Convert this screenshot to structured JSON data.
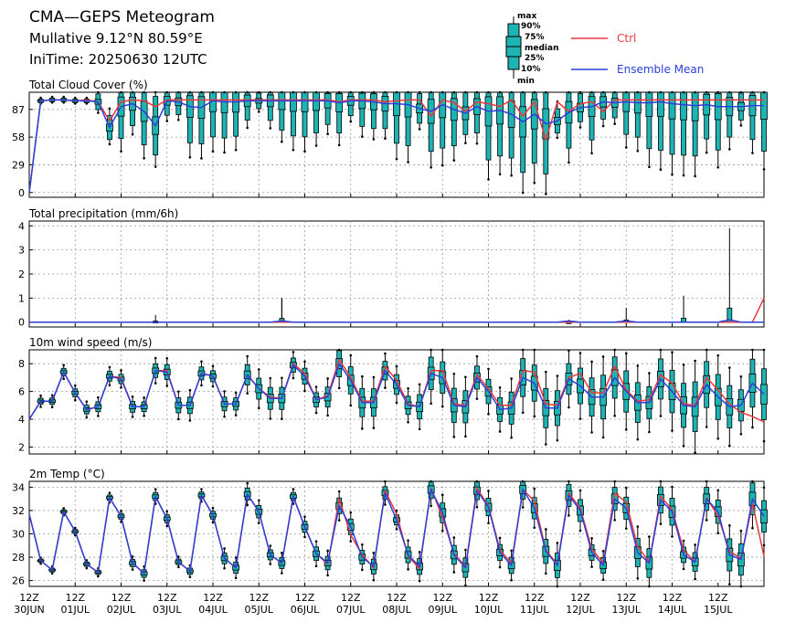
{
  "header": {
    "title": "CMA—GEPS Meteogram",
    "location": "Mullative 9.12°N 80.59°E",
    "init_time": "IniTime: 20250630 12UTC"
  },
  "box_key": {
    "labels": [
      "max",
      "90%",
      "75%",
      "median",
      "25%",
      "10%",
      "min"
    ]
  },
  "legend": {
    "ctrl_label": "Ctrl",
    "mean_label": "Ensemble Mean",
    "ctrl_color": "#e8383b",
    "mean_color": "#2c3fdc",
    "box_color": "#1fb4b4"
  },
  "chart_data": [
    {
      "type": "line",
      "panel": "cloud",
      "title": "Total Cloud Cover (%)",
      "ylim": [
        -5,
        105
      ],
      "yticks": [
        0,
        29,
        58,
        87
      ],
      "grid": true,
      "series": [
        {
          "name": "Ctrl",
          "values": [
            0,
            96,
            97,
            97,
            96,
            97,
            95,
            75,
            95,
            97,
            96,
            90,
            97,
            97,
            97,
            97,
            97,
            97,
            97,
            97,
            97,
            97,
            97,
            97,
            97,
            97,
            97,
            95,
            97,
            97,
            97,
            95,
            96,
            97,
            97,
            80,
            97,
            94,
            85,
            95,
            93,
            90,
            97,
            80,
            95,
            55,
            95,
            85,
            93,
            95,
            85,
            97,
            97,
            97,
            97,
            97,
            97,
            97,
            97,
            97,
            97,
            97,
            97,
            97,
            97
          ]
        },
        {
          "name": "Ensemble Mean",
          "values": [
            0,
            96,
            97,
            97,
            96,
            96,
            95,
            68,
            90,
            93,
            85,
            70,
            96,
            95,
            90,
            89,
            96,
            95,
            95,
            96,
            96,
            96,
            96,
            96,
            96,
            96,
            96,
            94,
            96,
            96,
            95,
            93,
            93,
            92,
            88,
            85,
            92,
            87,
            83,
            90,
            85,
            86,
            82,
            74,
            82,
            72,
            75,
            84,
            89,
            90,
            95,
            94,
            95,
            94,
            94,
            95,
            93,
            92,
            91,
            92,
            90,
            90,
            90,
            91,
            91
          ]
        }
      ]
    },
    {
      "type": "line",
      "panel": "precip",
      "title": "Total precipitation (mm/6h)",
      "ylim": [
        -0.2,
        4.2
      ],
      "yticks": [
        0,
        1,
        2,
        3,
        4
      ],
      "grid": true,
      "series": [
        {
          "name": "Ctrl",
          "values": [
            0,
            0,
            0,
            0,
            0,
            0,
            0,
            0,
            0,
            0,
            0,
            0,
            0,
            0,
            0,
            0,
            0,
            0,
            0,
            0,
            0,
            0,
            0,
            0,
            0,
            0,
            0,
            0,
            0,
            0,
            0,
            0,
            0,
            0,
            0,
            0,
            0,
            0,
            0,
            0,
            0,
            0,
            0,
            0,
            0,
            0,
            0,
            0,
            0,
            0,
            0,
            0,
            0,
            0,
            0,
            0,
            0,
            0,
            0,
            0,
            0,
            0,
            0,
            0,
            1.0
          ]
        },
        {
          "name": "Ensemble Mean",
          "values": [
            0,
            0,
            0,
            0,
            0,
            0,
            0,
            0,
            0,
            0,
            0,
            0,
            0,
            0,
            0,
            0,
            0,
            0,
            0,
            0,
            0,
            0,
            0.05,
            0,
            0,
            0,
            0,
            0,
            0,
            0,
            0,
            0,
            0,
            0,
            0,
            0,
            0,
            0,
            0,
            0,
            0,
            0,
            0,
            0,
            0,
            0,
            0,
            0.05,
            0,
            0,
            0,
            0,
            0.05,
            0,
            0,
            0,
            0,
            0,
            0,
            0,
            0,
            0.1,
            0,
            0,
            0
          ]
        }
      ]
    },
    {
      "type": "line",
      "panel": "wind",
      "title": "10m wind speed (m/s)",
      "ylim": [
        1.5,
        9
      ],
      "yticks": [
        2,
        4,
        6,
        8
      ],
      "grid": true,
      "series": [
        {
          "name": "Ctrl",
          "values": [
            4.0,
            5.3,
            5.3,
            7.4,
            5.9,
            4.7,
            4.9,
            7.1,
            7.0,
            4.9,
            4.9,
            7.5,
            7.5,
            5.0,
            5.0,
            7.3,
            7.1,
            5.1,
            5.1,
            7.2,
            6.2,
            5.6,
            5.5,
            8.0,
            7.3,
            5.4,
            5.7,
            8.3,
            7.0,
            5.3,
            5.3,
            7.8,
            6.8,
            5.1,
            4.9,
            7.5,
            7.5,
            5.1,
            5.0,
            7.2,
            6.2,
            5.0,
            5.0,
            7.5,
            7.4,
            5.1,
            5.0,
            7.0,
            7.3,
            5.9,
            5.9,
            7.8,
            6.1,
            5.3,
            5.4,
            7.2,
            6.6,
            5.1,
            5.0,
            7.0,
            6.1,
            5.1,
            4.5,
            4.2,
            3.8
          ]
        },
        {
          "name": "Ensemble Mean",
          "values": [
            4.0,
            5.3,
            5.3,
            7.4,
            5.9,
            4.7,
            4.9,
            7.1,
            6.9,
            4.9,
            4.9,
            7.5,
            7.4,
            5.0,
            5.0,
            7.3,
            7.1,
            5.1,
            5.1,
            7.2,
            6.2,
            5.5,
            5.5,
            7.9,
            7.1,
            5.4,
            5.6,
            8.0,
            6.8,
            5.2,
            5.2,
            7.5,
            6.5,
            5.0,
            4.9,
            7.3,
            7.0,
            5.0,
            4.9,
            7.0,
            6.0,
            4.7,
            4.8,
            7.0,
            6.6,
            4.8,
            4.8,
            6.9,
            6.4,
            5.6,
            5.6,
            7.0,
            6.0,
            5.2,
            5.2,
            6.9,
            6.0,
            5.0,
            4.9,
            6.5,
            5.6,
            4.9,
            5.0,
            6.6,
            5.8
          ]
        }
      ]
    },
    {
      "type": "line",
      "panel": "temp",
      "title": "2m Temp (°C)",
      "ylim": [
        25.5,
        34.5
      ],
      "yticks": [
        26,
        28,
        30,
        32,
        34
      ],
      "grid": true,
      "series": [
        {
          "name": "Ctrl",
          "values": [
            31.7,
            27.7,
            26.9,
            31.9,
            30.2,
            27.4,
            26.7,
            33.1,
            31.5,
            27.5,
            26.6,
            33.2,
            31.3,
            27.6,
            26.8,
            33.3,
            31.6,
            27.9,
            27.1,
            33.4,
            31.9,
            28.2,
            27.5,
            33.2,
            30.6,
            28.3,
            27.4,
            33.0,
            29.9,
            28.2,
            27.1,
            33.7,
            31.7,
            28.1,
            27.0,
            33.9,
            31.4,
            28.3,
            27.2,
            33.9,
            32.4,
            28.6,
            27.5,
            33.8,
            32.8,
            28.6,
            27.4,
            33.5,
            32.2,
            28.7,
            27.5,
            33.5,
            32.7,
            28.9,
            27.6,
            33.2,
            32.1,
            28.6,
            27.6,
            33.1,
            31.5,
            28.5,
            27.9,
            32.6,
            28.1
          ]
        },
        {
          "name": "Ensemble Mean",
          "values": [
            31.7,
            27.7,
            26.9,
            31.9,
            30.2,
            27.4,
            26.7,
            33.1,
            31.5,
            27.5,
            26.6,
            33.2,
            31.3,
            27.6,
            26.8,
            33.3,
            31.6,
            27.9,
            27.1,
            33.4,
            31.9,
            28.2,
            27.5,
            33.2,
            30.6,
            28.3,
            27.5,
            32.4,
            30.6,
            28.0,
            27.2,
            33.5,
            31.2,
            28.2,
            27.2,
            33.8,
            31.8,
            28.2,
            27.1,
            33.7,
            32.3,
            28.4,
            27.3,
            33.8,
            32.2,
            28.5,
            27.3,
            33.3,
            32.0,
            28.4,
            27.3,
            33.0,
            32.2,
            28.4,
            27.5,
            32.9,
            31.9,
            28.2,
            27.6,
            33.0,
            31.9,
            28.2,
            27.8,
            33.0,
            31.5
          ]
        }
      ]
    }
  ],
  "x_axis": {
    "hour_label": "12Z",
    "dates": [
      "30JUN",
      "01JUL",
      "02JUL",
      "03JUL",
      "04JUL",
      "05JUL",
      "06JUL",
      "07JUL",
      "08JUL",
      "09JUL",
      "10JUL",
      "11JUL",
      "12JUL",
      "13JUL",
      "14JUL",
      "15JUL"
    ]
  }
}
